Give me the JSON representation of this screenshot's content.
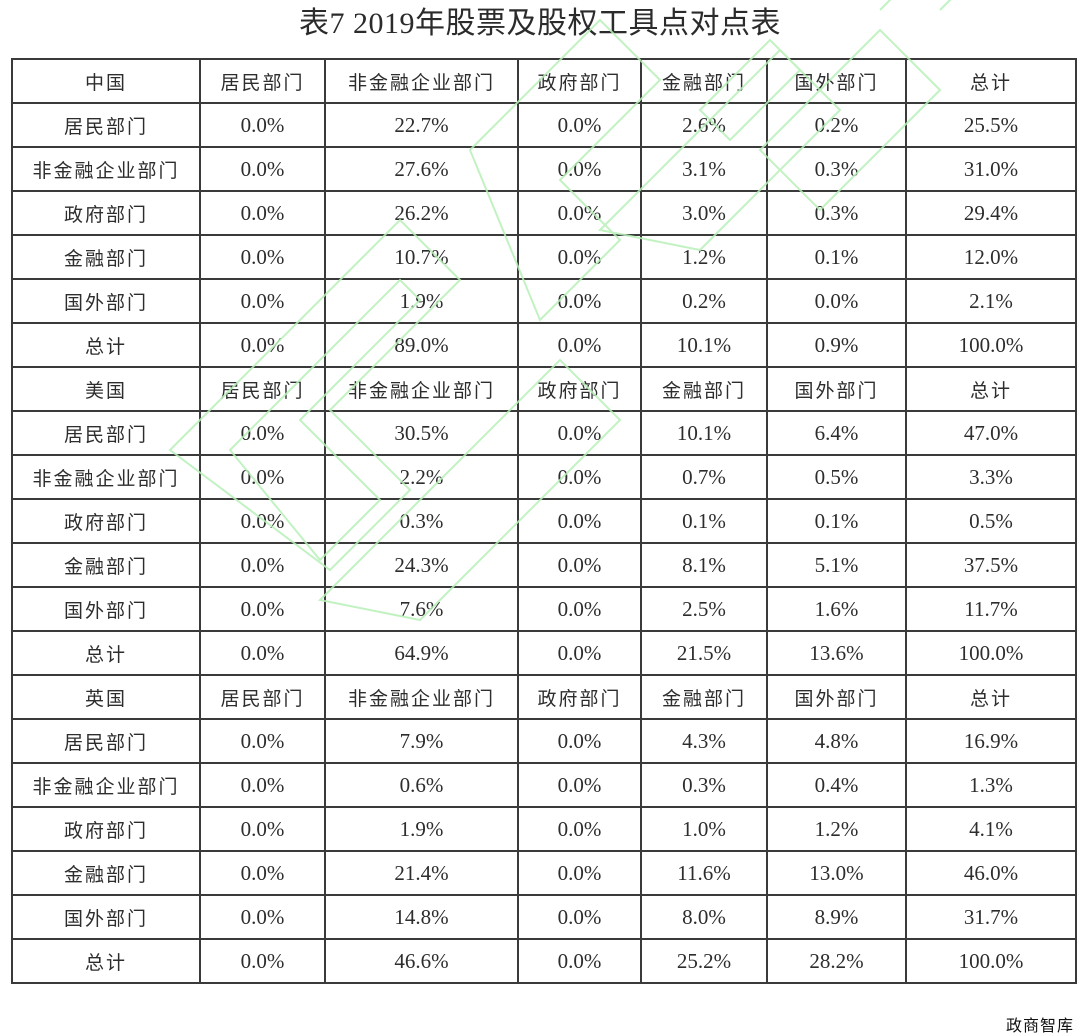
{
  "title": "表7 2019年股票及股权工具点对点表",
  "columns": [
    "居民部门",
    "非金融企业部门",
    "政府部门",
    "金融部门",
    "国外部门",
    "总计"
  ],
  "sections": [
    {
      "country": "中国",
      "rows": [
        {
          "label": "居民部门",
          "values": [
            "0.0%",
            "22.7%",
            "0.0%",
            "2.6%",
            "0.2%",
            "25.5%"
          ]
        },
        {
          "label": "非金融企业部门",
          "values": [
            "0.0%",
            "27.6%",
            "0.0%",
            "3.1%",
            "0.3%",
            "31.0%"
          ]
        },
        {
          "label": "政府部门",
          "values": [
            "0.0%",
            "26.2%",
            "0.0%",
            "3.0%",
            "0.3%",
            "29.4%"
          ]
        },
        {
          "label": "金融部门",
          "values": [
            "0.0%",
            "10.7%",
            "0.0%",
            "1.2%",
            "0.1%",
            "12.0%"
          ]
        },
        {
          "label": "国外部门",
          "values": [
            "0.0%",
            "1.9%",
            "0.0%",
            "0.2%",
            "0.0%",
            "2.1%"
          ]
        },
        {
          "label": "总计",
          "values": [
            "0.0%",
            "89.0%",
            "0.0%",
            "10.1%",
            "0.9%",
            "100.0%"
          ]
        }
      ]
    },
    {
      "country": "美国",
      "rows": [
        {
          "label": "居民部门",
          "values": [
            "0.0%",
            "30.5%",
            "0.0%",
            "10.1%",
            "6.4%",
            "47.0%"
          ]
        },
        {
          "label": "非金融企业部门",
          "values": [
            "0.0%",
            "2.2%",
            "0.0%",
            "0.7%",
            "0.5%",
            "3.3%"
          ]
        },
        {
          "label": "政府部门",
          "values": [
            "0.0%",
            "0.3%",
            "0.0%",
            "0.1%",
            "0.1%",
            "0.5%"
          ]
        },
        {
          "label": "金融部门",
          "values": [
            "0.0%",
            "24.3%",
            "0.0%",
            "8.1%",
            "5.1%",
            "37.5%"
          ]
        },
        {
          "label": "国外部门",
          "values": [
            "0.0%",
            "7.6%",
            "0.0%",
            "2.5%",
            "1.6%",
            "11.7%"
          ]
        },
        {
          "label": "总计",
          "values": [
            "0.0%",
            "64.9%",
            "0.0%",
            "21.5%",
            "13.6%",
            "100.0%"
          ]
        }
      ]
    },
    {
      "country": "英国",
      "rows": [
        {
          "label": "居民部门",
          "values": [
            "0.0%",
            "7.9%",
            "0.0%",
            "4.3%",
            "4.8%",
            "16.9%"
          ]
        },
        {
          "label": "非金融企业部门",
          "values": [
            "0.0%",
            "0.6%",
            "0.0%",
            "0.3%",
            "0.4%",
            "1.3%"
          ]
        },
        {
          "label": "政府部门",
          "values": [
            "0.0%",
            "1.9%",
            "0.0%",
            "1.0%",
            "1.2%",
            "4.1%"
          ]
        },
        {
          "label": "金融部门",
          "values": [
            "0.0%",
            "21.4%",
            "0.0%",
            "11.6%",
            "13.0%",
            "46.0%"
          ]
        },
        {
          "label": "国外部门",
          "values": [
            "0.0%",
            "14.8%",
            "0.0%",
            "8.0%",
            "8.9%",
            "31.7%"
          ]
        },
        {
          "label": "总计",
          "values": [
            "0.0%",
            "46.6%",
            "0.0%",
            "25.2%",
            "28.2%",
            "100.0%"
          ]
        }
      ]
    }
  ],
  "footer_mark": "政商智库",
  "watermark_color": "#b8f0b8"
}
